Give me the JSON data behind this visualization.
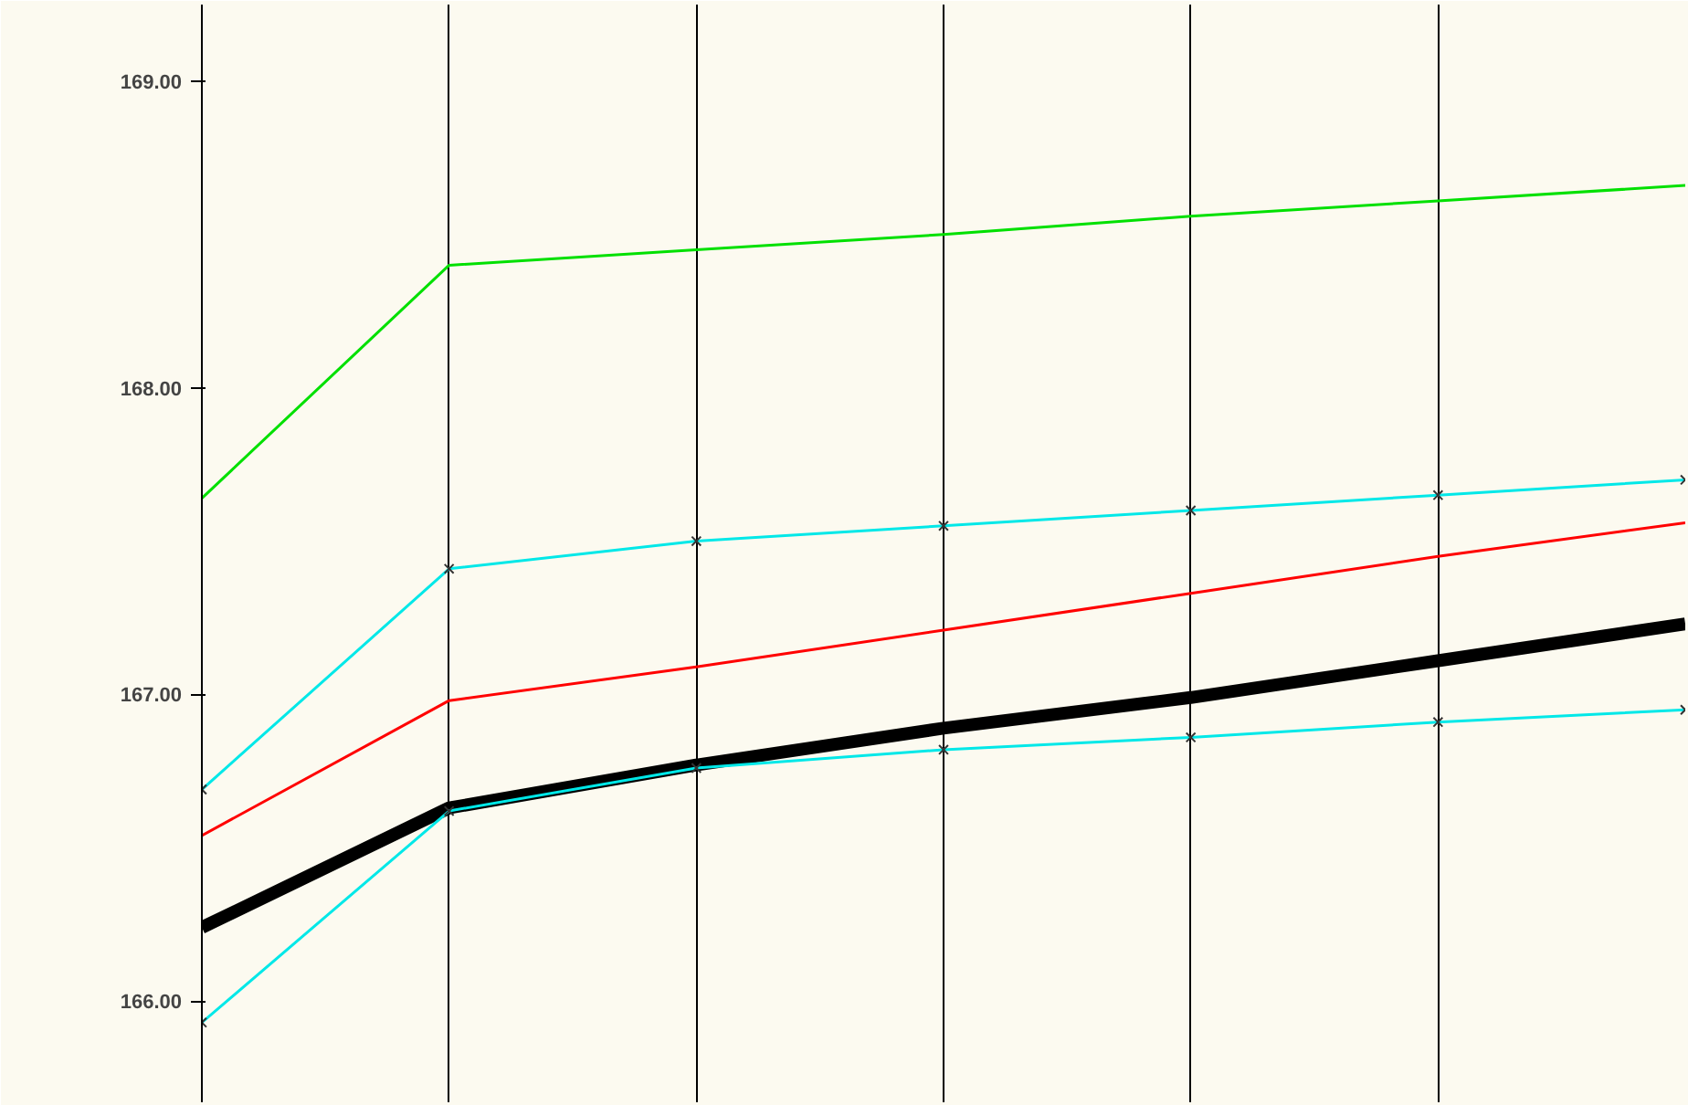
{
  "chart_data": {
    "type": "line",
    "categories": [
      null,
      null,
      null,
      null,
      null,
      null,
      null
    ],
    "series": [
      {
        "color": "#00e000",
        "values": [
          167.64,
          168.4,
          168.45,
          168.5,
          168.56,
          168.61,
          168.66
        ]
      },
      {
        "color": "#00e8e8",
        "marker": "cross",
        "values": [
          166.69,
          167.41,
          167.5,
          167.55,
          167.6,
          167.65,
          167.7
        ]
      },
      {
        "color": "#ff0000",
        "values": [
          166.54,
          166.98,
          167.09,
          167.21,
          167.33,
          167.45,
          167.56
        ]
      },
      {
        "color": "#000000",
        "values": [
          166.24,
          166.63,
          166.77,
          166.89,
          166.99,
          167.11,
          167.23
        ]
      },
      {
        "color": "#00e8e8",
        "marker": "cross",
        "values": [
          165.93,
          166.62,
          166.76,
          166.82,
          166.86,
          166.91,
          166.95
        ]
      }
    ],
    "ylim": [
      165.67,
      169.25
    ],
    "yticks": [
      {
        "value": 166,
        "label": "166.00"
      },
      {
        "value": 167,
        "label": "167.00"
      },
      {
        "value": 168,
        "label": "168.00"
      },
      {
        "value": 169,
        "label": "169.00"
      }
    ],
    "grid": "x",
    "tick_labels": "y",
    "line_style": "solid"
  }
}
